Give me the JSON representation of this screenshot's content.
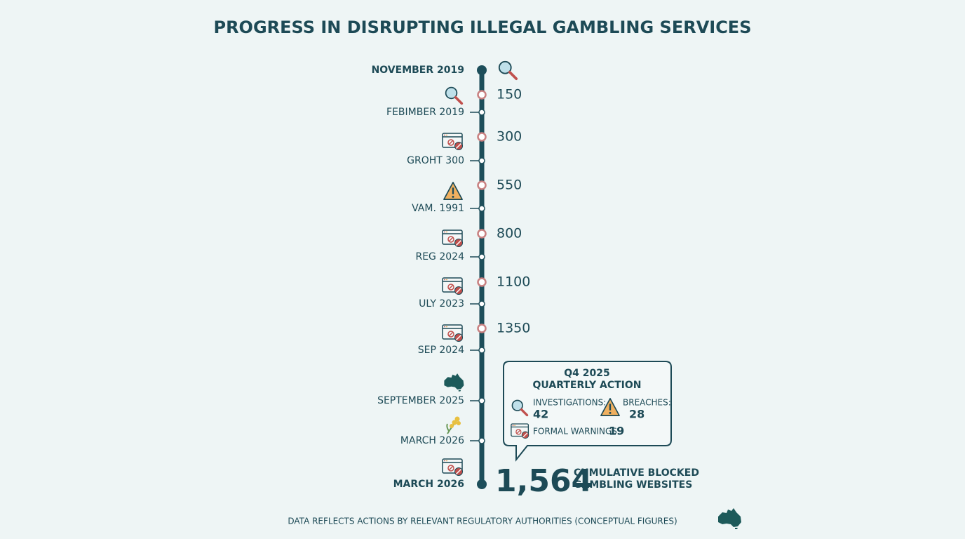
{
  "title": "PROGRESS IN DISRUPTING ILLEGAL GAMBLING SERVICES",
  "timeline": {
    "dates": [
      "NOVEMBER 2019",
      "FEBIMBER 2019",
      "GROHT 300",
      "VAM. 1991",
      "REG 2024",
      "ULY 2023",
      "SEP 2024",
      "SEPTEMBER 2025",
      "MARCH 2026",
      "MARCH 2026"
    ],
    "milestones": [
      150,
      300,
      550,
      800,
      1100,
      1350
    ]
  },
  "callout": {
    "period": "Q4 2025",
    "heading": "QUARTERLY ACTION",
    "items": [
      {
        "label": "INVESTIGATIONS:",
        "value": 42
      },
      {
        "label": "BREACHES:",
        "value": 28
      },
      {
        "label": "FORMAL WARNINGS:",
        "value": 19
      }
    ]
  },
  "total": {
    "value": "1,564",
    "caption": [
      "CUMULATIVE BLOCKED",
      "GAMBLING WEBSITES"
    ]
  },
  "footer": "DATA REFLECTS ACTIONS BY RELEVANT REGULATORY AUTHORITIES (CONCEPTUAL FIGURES)"
}
